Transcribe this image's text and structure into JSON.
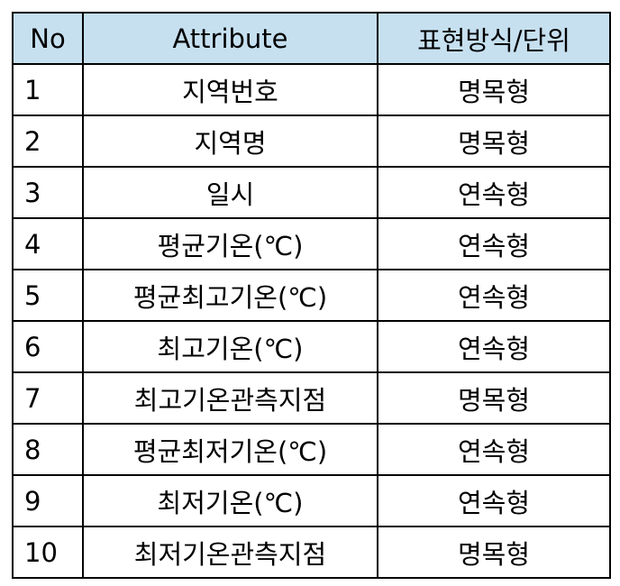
{
  "table": {
    "headers": {
      "no": "No",
      "attribute": "Attribute",
      "type": "표현방식/단위"
    },
    "rows": [
      {
        "no": "1",
        "attribute": "지역번호",
        "type": "명목형"
      },
      {
        "no": "2",
        "attribute": "지역명",
        "type": "명목형"
      },
      {
        "no": "3",
        "attribute": "일시",
        "type": "연속형"
      },
      {
        "no": "4",
        "attribute": "평균기온(℃)",
        "type": "연속형"
      },
      {
        "no": "5",
        "attribute": "평균최고기온(℃)",
        "type": "연속형"
      },
      {
        "no": "6",
        "attribute": "최고기온(℃)",
        "type": "연속형"
      },
      {
        "no": "7",
        "attribute": "최고기온관측지점",
        "type": "명목형"
      },
      {
        "no": "8",
        "attribute": "평균최저기온(℃)",
        "type": "연속형"
      },
      {
        "no": "9",
        "attribute": "최저기온(℃)",
        "type": "연속형"
      },
      {
        "no": "10",
        "attribute": "최저기온관측지점",
        "type": "명목형"
      }
    ],
    "header_color": "#c6e0f0"
  }
}
